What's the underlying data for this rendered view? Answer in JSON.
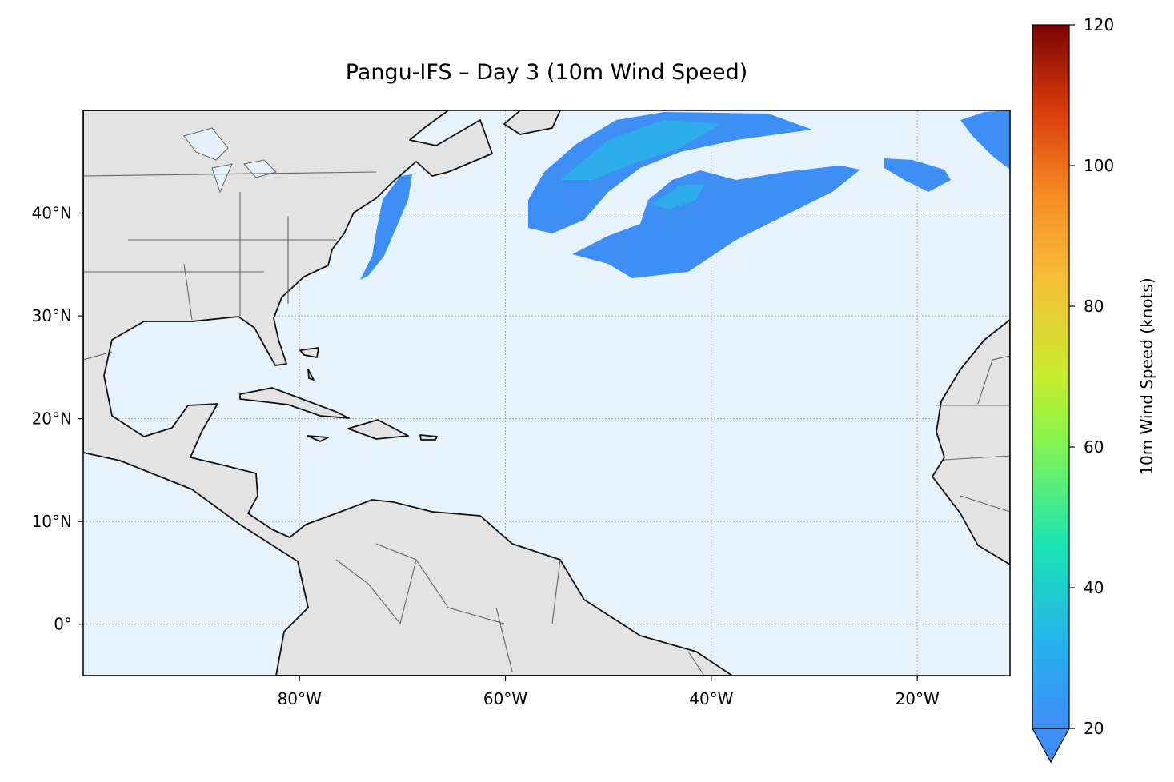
{
  "chart_data": {
    "type": "map",
    "title": "Pangu-IFS – Day 3 (10m Wind Speed)",
    "xlim": [
      -101,
      -11
    ],
    "ylim": [
      -5,
      50
    ],
    "xticks": [
      {
        "value": -80,
        "label": "80°W"
      },
      {
        "value": -60,
        "label": "60°W"
      },
      {
        "value": -40,
        "label": "40°W"
      },
      {
        "value": -20,
        "label": "20°W"
      }
    ],
    "yticks": [
      {
        "value": 0,
        "label": "0°"
      },
      {
        "value": 10,
        "label": "10°N"
      },
      {
        "value": 20,
        "label": "20°N"
      },
      {
        "value": 30,
        "label": "30°N"
      },
      {
        "value": 40,
        "label": "40°N"
      }
    ],
    "grid": true,
    "colorbar": {
      "label": "10m Wind Speed (knots)",
      "lim": [
        20,
        120
      ],
      "ticks": [
        20,
        40,
        60,
        80,
        100,
        120
      ]
    }
  }
}
